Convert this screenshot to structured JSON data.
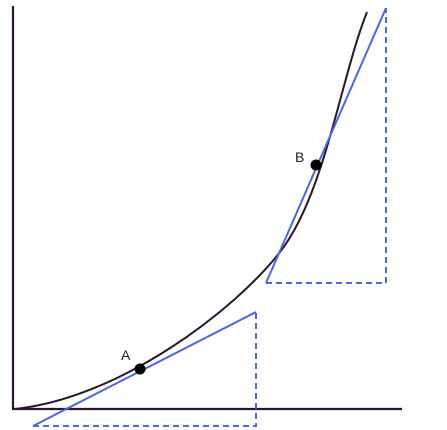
{
  "points": {
    "a": {
      "label": "A"
    },
    "b": {
      "label": "B"
    }
  },
  "colors": {
    "curve": "#2a1630",
    "tangent": "#4a66ea",
    "point": "#000000"
  }
}
